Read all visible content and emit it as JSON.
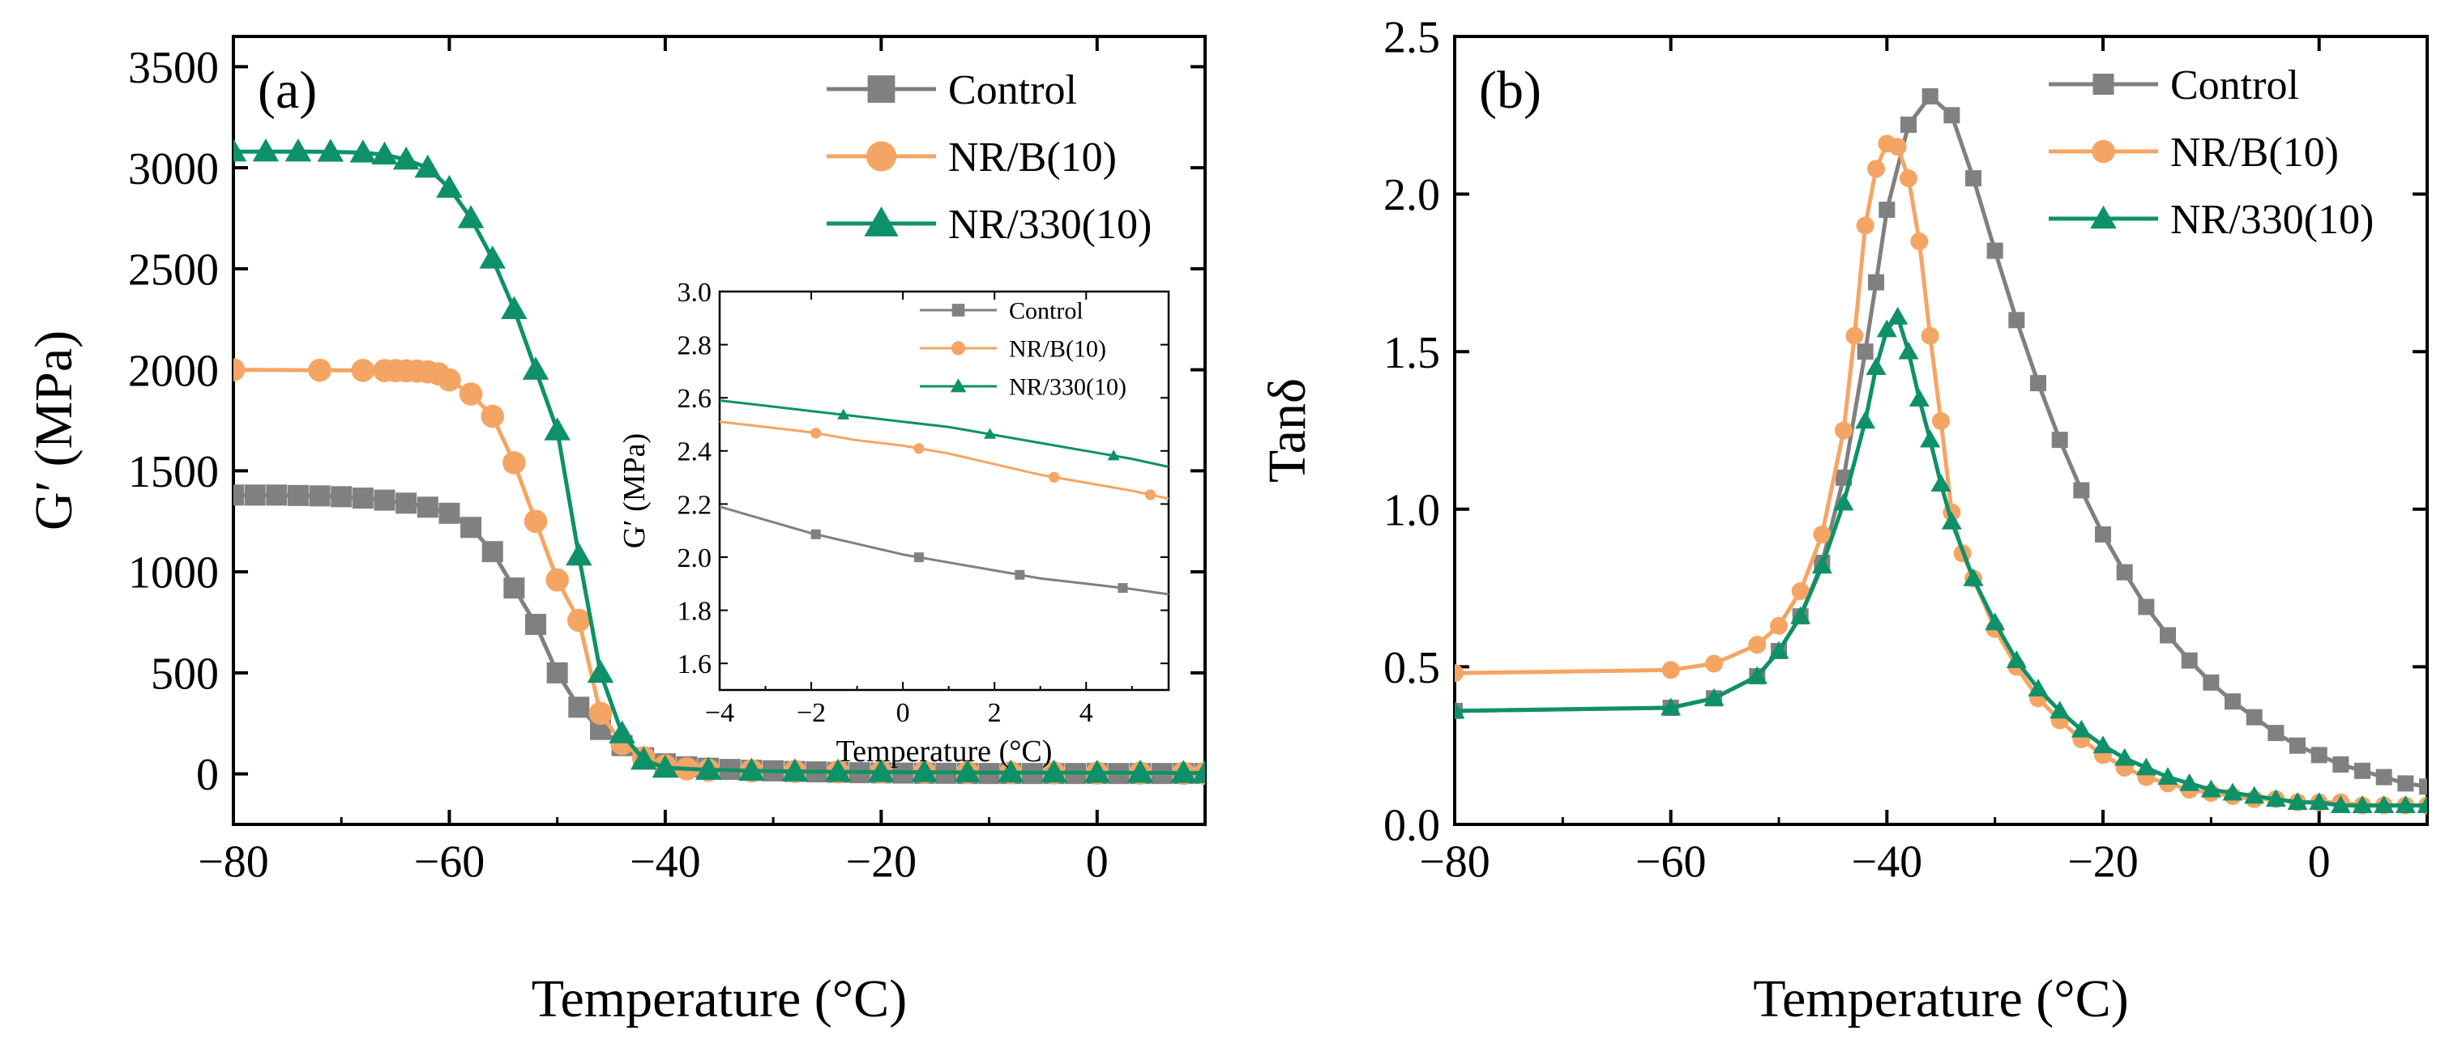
{
  "colors": {
    "control": "#808080",
    "nrb": "#F5A563",
    "nr330": "#0E9168"
  },
  "chart_data": [
    {
      "id": "a",
      "type": "line",
      "panel_label": "(a)",
      "xlabel": "Temperature (°C)",
      "ylabel": "G′ (MPa)",
      "xlim": [
        -80,
        10
      ],
      "ylim": [
        -250,
        3650
      ],
      "xticks": [
        -80,
        -60,
        -40,
        -20,
        0
      ],
      "xtick_labels": [
        "−80",
        "−60",
        "−40",
        "−20",
        "0"
      ],
      "yticks": [
        0,
        500,
        1000,
        1500,
        2000,
        2500,
        3000,
        3500
      ],
      "ytick_labels": [
        "0",
        "500",
        "1000",
        "1500",
        "2000",
        "2500",
        "3000",
        "3500"
      ],
      "legend_position": "top-right",
      "series": [
        {
          "name": "Control",
          "color_key": "control",
          "marker": "square",
          "x": [
            -80,
            -78,
            -76,
            -74,
            -72,
            -70,
            -68,
            -66,
            -64,
            -62,
            -60,
            -58,
            -56,
            -54,
            -52,
            -50,
            -48,
            -46,
            -44,
            -42,
            -40,
            -38,
            -36,
            -34,
            -32,
            -30,
            -28,
            -26,
            -24,
            -22,
            -20,
            -18,
            -16,
            -14,
            -12,
            -10,
            -8,
            -6,
            -4,
            -2,
            0,
            2,
            4,
            6,
            8,
            10
          ],
          "y": [
            1380,
            1380,
            1380,
            1378,
            1376,
            1372,
            1365,
            1355,
            1340,
            1320,
            1290,
            1220,
            1100,
            920,
            740,
            500,
            330,
            220,
            140,
            80,
            50,
            35,
            28,
            22,
            18,
            15,
            12,
            10,
            8,
            6,
            5,
            4,
            3,
            3,
            2,
            2,
            2,
            2,
            2,
            2,
            2,
            2,
            2,
            2,
            2,
            2
          ]
        },
        {
          "name": "NR/B(10)",
          "color_key": "nrb",
          "marker": "circle",
          "x": [
            -80,
            -72,
            -68,
            -66,
            -65,
            -64,
            -63,
            -62,
            -61,
            -60,
            -58,
            -56,
            -54,
            -52,
            -50,
            -48,
            -46,
            -44,
            -42,
            -40,
            -38,
            -36,
            -32,
            -28,
            -24,
            -20,
            -16,
            -12,
            -8,
            -4,
            0,
            4,
            8,
            10
          ],
          "y": [
            2000,
            1998,
            1997,
            1996,
            1996,
            1995,
            1994,
            1990,
            1980,
            1950,
            1880,
            1770,
            1540,
            1250,
            960,
            760,
            300,
            150,
            80,
            40,
            25,
            18,
            15,
            12,
            10,
            9,
            8,
            7,
            6,
            5,
            4,
            4,
            3,
            3
          ]
        },
        {
          "name": "NR/330(10)",
          "color_key": "nr330",
          "marker": "triangle",
          "x": [
            -80,
            -77,
            -74,
            -71,
            -68,
            -66,
            -64,
            -62,
            -60,
            -58,
            -56,
            -54,
            -52,
            -50,
            -48,
            -46,
            -44,
            -42,
            -40,
            -36,
            -32,
            -28,
            -24,
            -20,
            -16,
            -12,
            -8,
            -4,
            0,
            4,
            8,
            10
          ],
          "y": [
            3080,
            3080,
            3080,
            3079,
            3075,
            3065,
            3040,
            3000,
            2900,
            2750,
            2550,
            2300,
            2000,
            1700,
            1080,
            500,
            200,
            70,
            30,
            20,
            15,
            12,
            10,
            9,
            8,
            7,
            6,
            6,
            5,
            5,
            4,
            4
          ]
        }
      ],
      "inset": {
        "xlabel": "Temperature (°C)",
        "ylabel": "G′ (MPa)",
        "xlim": [
          -4,
          5.8
        ],
        "ylim": [
          1.5,
          3.0
        ],
        "xticks": [
          -4,
          -2,
          0,
          2,
          4
        ],
        "xtick_labels": [
          "−4",
          "−2",
          "0",
          "2",
          "4"
        ],
        "yticks": [
          1.6,
          1.8,
          2.0,
          2.2,
          2.4,
          2.6,
          2.8,
          3.0
        ],
        "ytick_labels": [
          "1.6",
          "1.8",
          "2.0",
          "2.2",
          "2.4",
          "2.6",
          "2.8",
          "3.0"
        ],
        "legend_position": "top-right",
        "series": [
          {
            "name": "Control",
            "color_key": "control",
            "marker": "square",
            "x": [
              -4,
              -3,
              -2,
              -1,
              0,
              1,
              2,
              3,
              4,
              5,
              5.8
            ],
            "y": [
              2.19,
              2.14,
              2.09,
              2.05,
              2.01,
              1.98,
              1.95,
              1.92,
              1.9,
              1.88,
              1.86
            ],
            "marker_x": [
              -1.9,
              0.35,
              2.55,
              4.8
            ]
          },
          {
            "name": "NR/B(10)",
            "color_key": "nrb",
            "marker": "circle",
            "x": [
              -4,
              -3,
              -2,
              -1,
              0,
              1,
              2,
              3,
              4,
              5,
              5.8
            ],
            "y": [
              2.51,
              2.49,
              2.47,
              2.44,
              2.42,
              2.39,
              2.35,
              2.31,
              2.28,
              2.25,
              2.22
            ],
            "marker_x": [
              -1.9,
              0.35,
              3.3,
              5.4
            ]
          },
          {
            "name": "NR/330(10)",
            "color_key": "nr330",
            "marker": "triangle",
            "x": [
              -4,
              -3,
              -2,
              -1,
              0,
              1,
              2,
              3,
              4,
              5,
              5.8
            ],
            "y": [
              2.59,
              2.57,
              2.55,
              2.53,
              2.51,
              2.49,
              2.46,
              2.43,
              2.4,
              2.37,
              2.34
            ],
            "marker_x": [
              -1.3,
              1.9,
              4.6
            ]
          }
        ]
      }
    },
    {
      "id": "b",
      "type": "line",
      "panel_label": "(b)",
      "xlabel": "Temperature (°C)",
      "ylabel": "Tanδ",
      "xlim": [
        -80,
        10
      ],
      "ylim": [
        0,
        2.5
      ],
      "xticks": [
        -80,
        -60,
        -40,
        -20,
        0
      ],
      "xtick_labels": [
        "−80",
        "−60",
        "−40",
        "−20",
        "0"
      ],
      "yticks": [
        0.0,
        0.5,
        1.0,
        1.5,
        2.0,
        2.5
      ],
      "ytick_labels": [
        "0.0",
        "0.5",
        "1.0",
        "1.5",
        "2.0",
        "2.5"
      ],
      "legend_position": "top-right",
      "series": [
        {
          "name": "Control",
          "color_key": "control",
          "marker": "square",
          "x": [
            -80,
            -60,
            -56,
            -52,
            -50,
            -48,
            -46,
            -44,
            -42,
            -41,
            -40,
            -38,
            -36,
            -34,
            -32,
            -30,
            -28,
            -26,
            -24,
            -22,
            -20,
            -18,
            -16,
            -14,
            -12,
            -10,
            -8,
            -6,
            -4,
            -2,
            0,
            2,
            4,
            6,
            8,
            10
          ],
          "y": [
            0.36,
            0.37,
            0.4,
            0.47,
            0.55,
            0.66,
            0.83,
            1.1,
            1.5,
            1.72,
            1.95,
            2.22,
            2.31,
            2.25,
            2.05,
            1.82,
            1.6,
            1.4,
            1.22,
            1.06,
            0.92,
            0.8,
            0.69,
            0.6,
            0.52,
            0.45,
            0.39,
            0.34,
            0.29,
            0.25,
            0.22,
            0.19,
            0.17,
            0.15,
            0.13,
            0.12
          ]
        },
        {
          "name": "NR/B(10)",
          "color_key": "nrb",
          "marker": "circle",
          "x": [
            -80,
            -60,
            -56,
            -52,
            -50,
            -48,
            -46,
            -44,
            -43,
            -42,
            -41,
            -40,
            -39,
            -38,
            -37,
            -36,
            -35,
            -34,
            -33,
            -32,
            -30,
            -28,
            -26,
            -24,
            -22,
            -20,
            -18,
            -16,
            -14,
            -12,
            -10,
            -8,
            -6,
            -4,
            -2,
            0,
            2,
            4,
            6,
            8,
            10
          ],
          "y": [
            0.48,
            0.49,
            0.51,
            0.57,
            0.63,
            0.74,
            0.92,
            1.25,
            1.55,
            1.9,
            2.08,
            2.16,
            2.15,
            2.05,
            1.85,
            1.55,
            1.28,
            0.99,
            0.86,
            0.78,
            0.62,
            0.5,
            0.4,
            0.33,
            0.27,
            0.22,
            0.18,
            0.15,
            0.13,
            0.11,
            0.1,
            0.09,
            0.08,
            0.08,
            0.07,
            0.07,
            0.07,
            0.06,
            0.06,
            0.06,
            0.06
          ]
        },
        {
          "name": "NR/330(10)",
          "color_key": "nr330",
          "marker": "triangle",
          "x": [
            -80,
            -60,
            -56,
            -52,
            -50,
            -48,
            -46,
            -44,
            -42,
            -41,
            -40,
            -39,
            -38,
            -37,
            -36,
            -35,
            -34,
            -32,
            -30,
            -28,
            -26,
            -24,
            -22,
            -20,
            -18,
            -16,
            -14,
            -12,
            -10,
            -8,
            -6,
            -4,
            -2,
            0,
            2,
            4,
            6,
            8,
            10
          ],
          "y": [
            0.36,
            0.37,
            0.4,
            0.47,
            0.55,
            0.66,
            0.82,
            1.02,
            1.28,
            1.45,
            1.57,
            1.61,
            1.5,
            1.35,
            1.22,
            1.08,
            0.96,
            0.78,
            0.64,
            0.52,
            0.43,
            0.36,
            0.3,
            0.25,
            0.21,
            0.18,
            0.15,
            0.13,
            0.11,
            0.1,
            0.09,
            0.08,
            0.07,
            0.07,
            0.06,
            0.06,
            0.06,
            0.06,
            0.06
          ]
        }
      ]
    }
  ]
}
